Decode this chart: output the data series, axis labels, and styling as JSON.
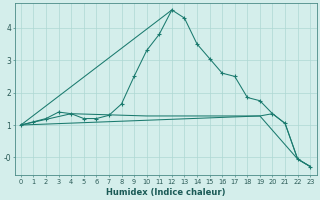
{
  "xlabel": "Humidex (Indice chaleur)",
  "bg_color": "#d4eeeb",
  "line_color": "#1a7a6e",
  "grid_color": "#aed8d3",
  "xlim": [
    -0.5,
    23.5
  ],
  "ylim": [
    -0.55,
    4.75
  ],
  "xticks": [
    0,
    1,
    2,
    3,
    4,
    5,
    6,
    7,
    8,
    9,
    10,
    11,
    12,
    13,
    14,
    15,
    16,
    17,
    18,
    19,
    20,
    21,
    22,
    23
  ],
  "yticks": [
    0,
    1,
    2,
    3,
    4
  ],
  "ytick_labels": [
    "-0",
    "1",
    "2",
    "3",
    "4"
  ],
  "series_marked": {
    "x": [
      0,
      1,
      2,
      3,
      4,
      5,
      6,
      7,
      8,
      9,
      10,
      11,
      12,
      13,
      14,
      15,
      16,
      17,
      18,
      19,
      20,
      21,
      22,
      23
    ],
    "y": [
      1.0,
      1.1,
      1.2,
      1.4,
      1.35,
      1.2,
      1.2,
      1.3,
      1.65,
      2.5,
      3.3,
      3.8,
      4.55,
      4.3,
      3.5,
      3.05,
      2.6,
      2.5,
      1.85,
      1.75,
      1.35,
      1.05,
      -0.05,
      -0.28
    ]
  },
  "series_flat": {
    "x": [
      0,
      4,
      10,
      19,
      22,
      23
    ],
    "y": [
      1.0,
      1.35,
      1.28,
      1.28,
      -0.05,
      -0.28
    ]
  },
  "series_diag": {
    "x": [
      0,
      19,
      20,
      21,
      22,
      23
    ],
    "y": [
      1.0,
      1.28,
      1.35,
      1.05,
      -0.05,
      -0.28
    ]
  },
  "series_triangle": {
    "x": [
      0,
      12
    ],
    "y": [
      1.0,
      4.55
    ]
  }
}
